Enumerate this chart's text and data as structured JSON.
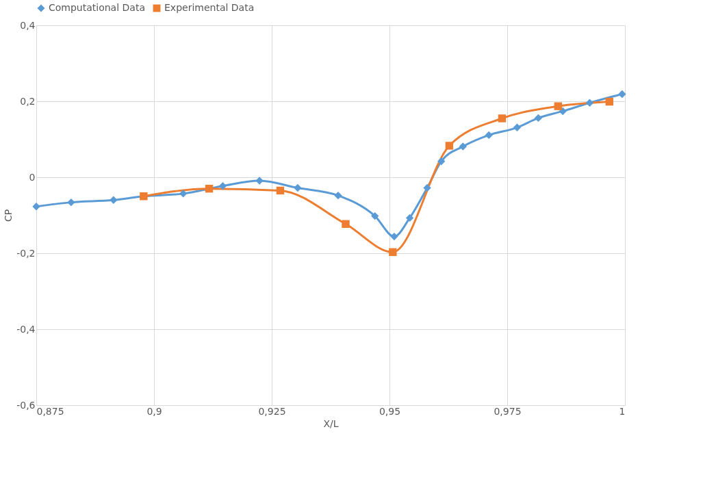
{
  "chart_data": {
    "type": "line",
    "xlabel": "X/L",
    "ylabel": "CP",
    "xlim": [
      0.875,
      1
    ],
    "ylim": [
      -0.6,
      0.4
    ],
    "xticks": [
      {
        "value": 0.875,
        "label": "0,875"
      },
      {
        "value": 0.9,
        "label": "0,9"
      },
      {
        "value": 0.925,
        "label": "0,925"
      },
      {
        "value": 0.95,
        "label": "0,95"
      },
      {
        "value": 0.975,
        "label": "0,975"
      },
      1
    ],
    "yticks": [
      {
        "value": -0.6,
        "label": "-0,6"
      },
      {
        "value": -0.4,
        "label": "-0,4"
      },
      {
        "value": -0.2,
        "label": "-0,2"
      },
      0,
      {
        "value": 0.2,
        "label": "0,2"
      },
      {
        "value": 0.4,
        "label": "0,4"
      }
    ],
    "grid": true,
    "legend": "top",
    "series": [
      {
        "name": "Computational Data",
        "color": "#5b9bd5",
        "marker": "diamond",
        "x": [
          0.875,
          0.8824,
          0.8914,
          0.8978,
          0.9062,
          0.9146,
          0.9224,
          0.9305,
          0.9391,
          0.9469,
          0.951,
          0.9543,
          0.958,
          0.961,
          0.9656,
          0.9711,
          0.9771,
          0.9816,
          0.9868,
          0.9925,
          0.9994
        ],
        "values": [
          -0.077,
          -0.066,
          -0.06,
          -0.05,
          -0.043,
          -0.023,
          -0.009,
          -0.028,
          -0.048,
          -0.102,
          -0.156,
          -0.107,
          -0.028,
          0.042,
          0.081,
          0.111,
          0.131,
          0.156,
          0.174,
          0.196,
          0.219
        ]
      },
      {
        "name": "Experimental Data",
        "color": "#ed7d31",
        "marker": "square",
        "x": [
          0.8978,
          0.9117,
          0.9268,
          0.9407,
          0.9507,
          0.9627,
          0.9739,
          0.9858,
          0.9967
        ],
        "values": [
          -0.05,
          -0.03,
          -0.035,
          -0.123,
          -0.197,
          0.083,
          0.155,
          0.187,
          0.199
        ]
      }
    ]
  }
}
